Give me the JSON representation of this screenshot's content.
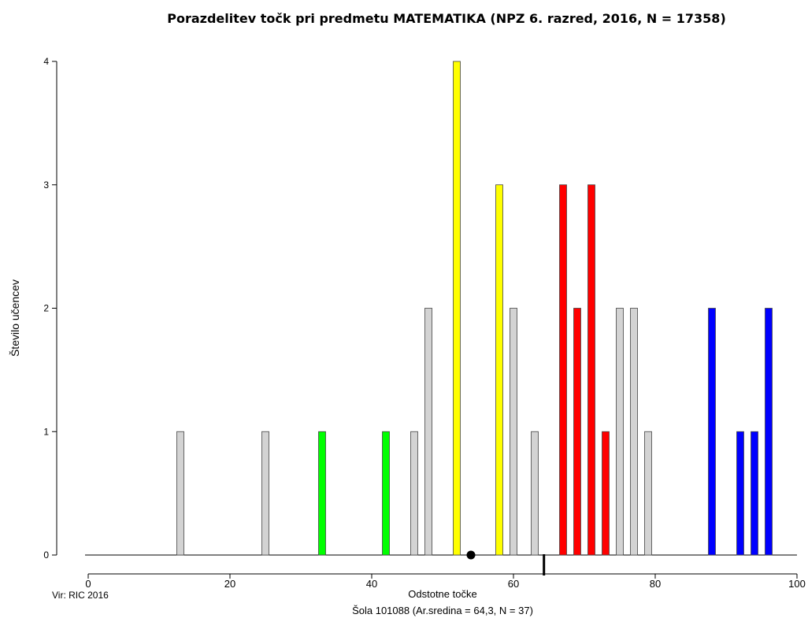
{
  "chart_data": {
    "type": "bar",
    "title": "Porazdelitev točk pri predmetu MATEMATIKA (NPZ 6. razred, 2016, N = 17358)",
    "xlabel": "Odstotne točke",
    "ylabel": "Število učencev",
    "subtitle": "Šola 101088 (Ar.sredina = 64,3, N = 37)",
    "source": "Vir: RIC 2016",
    "xlim": [
      0,
      100
    ],
    "ylim": [
      0,
      4
    ],
    "x_ticks": [
      "0",
      "20",
      "40",
      "60",
      "80",
      "100"
    ],
    "y_ticks": [
      "0",
      "1",
      "2",
      "3",
      "4"
    ],
    "grid": false,
    "legend": "none",
    "national_mean_marker": 54,
    "school_mean_marker": 64.3,
    "colors": {
      "grey": "#d3d3d3",
      "green": "#00ff00",
      "yellow": "#ffff00",
      "red": "#ff0000",
      "blue": "#0000ff"
    },
    "bars": [
      {
        "x": 13,
        "value": 1,
        "color": "grey"
      },
      {
        "x": 25,
        "value": 1,
        "color": "grey"
      },
      {
        "x": 33,
        "value": 1,
        "color": "green"
      },
      {
        "x": 42,
        "value": 1,
        "color": "green"
      },
      {
        "x": 46,
        "value": 1,
        "color": "grey"
      },
      {
        "x": 48,
        "value": 2,
        "color": "grey"
      },
      {
        "x": 52,
        "value": 4,
        "color": "yellow"
      },
      {
        "x": 58,
        "value": 3,
        "color": "yellow"
      },
      {
        "x": 60,
        "value": 2,
        "color": "grey"
      },
      {
        "x": 63,
        "value": 1,
        "color": "grey"
      },
      {
        "x": 67,
        "value": 3,
        "color": "red"
      },
      {
        "x": 69,
        "value": 2,
        "color": "red"
      },
      {
        "x": 71,
        "value": 3,
        "color": "red"
      },
      {
        "x": 73,
        "value": 1,
        "color": "red"
      },
      {
        "x": 75,
        "value": 2,
        "color": "grey"
      },
      {
        "x": 77,
        "value": 2,
        "color": "grey"
      },
      {
        "x": 79,
        "value": 1,
        "color": "grey"
      },
      {
        "x": 88,
        "value": 2,
        "color": "blue"
      },
      {
        "x": 92,
        "value": 1,
        "color": "blue"
      },
      {
        "x": 94,
        "value": 1,
        "color": "blue"
      },
      {
        "x": 96,
        "value": 2,
        "color": "blue"
      }
    ]
  }
}
